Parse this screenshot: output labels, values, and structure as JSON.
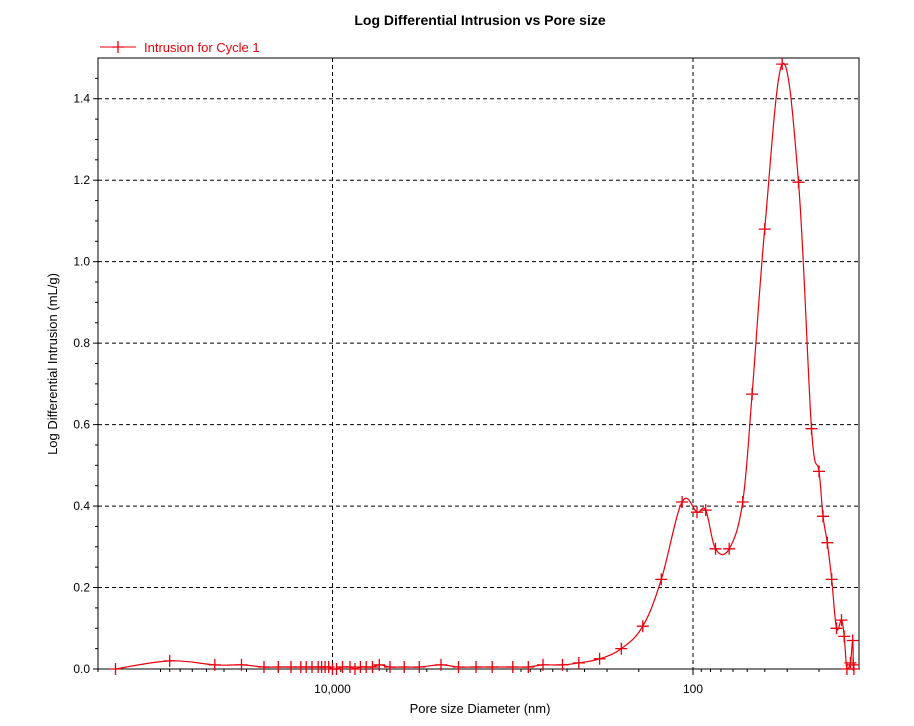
{
  "chart_data": {
    "type": "line",
    "title": "Log Differential Intrusion vs Pore size",
    "xlabel": "Pore size Diameter (nm)",
    "ylabel": "Log Differential Intrusion (mL/g)",
    "x_scale": "log",
    "x_reversed": true,
    "xlim": [
      200000,
      12
    ],
    "ylim": [
      0,
      1.5
    ],
    "x_ticks": [
      {
        "value": 10000,
        "label": "10,000"
      },
      {
        "value": 100,
        "label": "100"
      }
    ],
    "y_ticks": [
      {
        "value": 0.0,
        "label": "0.0"
      },
      {
        "value": 0.2,
        "label": "0.2"
      },
      {
        "value": 0.4,
        "label": "0.4"
      },
      {
        "value": 0.6,
        "label": "0.6"
      },
      {
        "value": 0.8,
        "label": "0.8"
      },
      {
        "value": 1.0,
        "label": "1.0"
      },
      {
        "value": 1.2,
        "label": "1.2"
      },
      {
        "value": 1.4,
        "label": "1.4"
      }
    ],
    "grid": true,
    "legend": "top-left",
    "series": [
      {
        "name": "Intrusion for Cycle 1",
        "color": "#e8000b",
        "marker": "plus",
        "x": [
          160000,
          80000,
          45000,
          32000,
          24000,
          20000,
          17000,
          15000,
          14000,
          13000,
          12000,
          11500,
          11000,
          10500,
          10000,
          9500,
          8800,
          8000,
          7500,
          7000,
          6500,
          6000,
          5500,
          4800,
          4000,
          3300,
          2500,
          2000,
          1600,
          1300,
          1000,
          820,
          680,
          530,
          430,
          330,
          250,
          190,
          150,
          115,
          95,
          85,
          75,
          63,
          53,
          47,
          40,
          32,
          26,
          22,
          20,
          19,
          18,
          17,
          16,
          15,
          14.5,
          14,
          13.4,
          13.0,
          12.9,
          12.8
        ],
        "y": [
          0.0,
          0.02,
          0.01,
          0.01,
          0.005,
          0.005,
          0.005,
          0.005,
          0.005,
          0.005,
          0.005,
          0.005,
          0.005,
          0.005,
          0.0,
          0.0,
          0.005,
          0.005,
          0.0,
          0.005,
          0.005,
          0.005,
          0.01,
          0.005,
          0.005,
          0.005,
          0.01,
          0.005,
          0.005,
          0.005,
          0.005,
          0.005,
          0.01,
          0.01,
          0.015,
          0.025,
          0.05,
          0.105,
          0.22,
          0.41,
          0.385,
          0.39,
          0.295,
          0.295,
          0.41,
          0.675,
          1.08,
          1.485,
          1.195,
          0.59,
          0.485,
          0.375,
          0.31,
          0.22,
          0.1,
          0.12,
          0.08,
          0.0,
          0.015,
          0.07,
          0.01,
          0.0
        ]
      }
    ]
  }
}
